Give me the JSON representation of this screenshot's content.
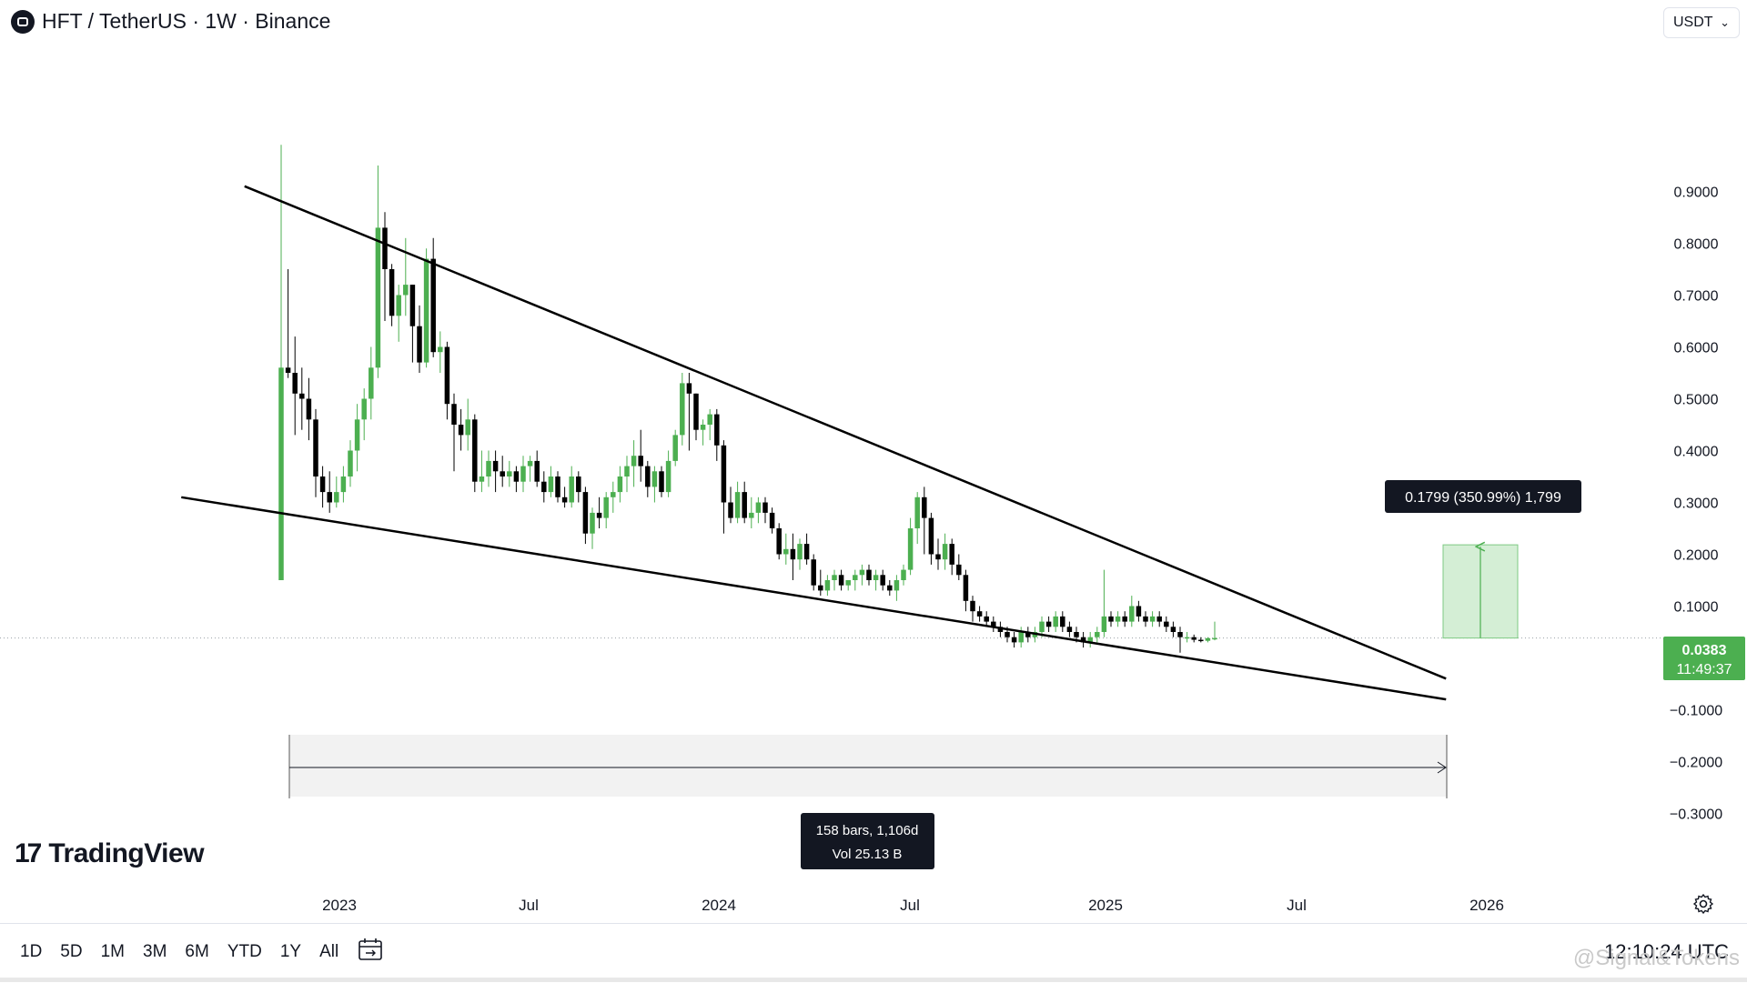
{
  "header": {
    "title": "HFT / TetherUS · 1W · Binance"
  },
  "currency_select": {
    "value": "USDT"
  },
  "brand": {
    "name": "TradingView"
  },
  "toolbar": {
    "ranges": [
      "1D",
      "5D",
      "1M",
      "3M",
      "6M",
      "YTD",
      "1Y",
      "All"
    ],
    "clock": "12:10:24 UTC"
  },
  "watermark": "@Signal&Tokens",
  "chart_data": {
    "type": "candlestick",
    "y_axis_labels": [
      "0.9000",
      "0.8000",
      "0.7000",
      "0.6000",
      "0.5000",
      "0.4000",
      "0.3000",
      "0.2000",
      "0.1000",
      "−0.1000",
      "−0.2000",
      "−0.3000"
    ],
    "ylim": [
      -0.36,
      1.0
    ],
    "x_axis_labels": [
      "2023",
      "Jul",
      "2024",
      "Jul",
      "2025",
      "Jul",
      "2026"
    ],
    "last_price": {
      "value": "0.0383",
      "countdown": "11:49:37"
    },
    "measure_price": {
      "label": "0.1799 (350.99%) 1,799"
    },
    "measure_range": {
      "bars_label": "158 bars, 1,106d",
      "vol_label": "Vol 25.13 B"
    },
    "colors": {
      "up": "#4caf50",
      "down": "#000000",
      "trendline": "#000000",
      "measure_fill": "#d4eed5"
    },
    "trendlines": [
      {
        "name": "upper-resistance",
        "from": [
          "2022-10",
          0.91
        ],
        "to": [
          "2025-12",
          -0.04
        ]
      },
      {
        "name": "lower-support",
        "from": [
          "2022-08",
          0.31
        ],
        "to": [
          "2025-12",
          -0.08
        ]
      }
    ],
    "candles": [
      [
        0.15,
        0.99,
        0.15,
        0.56
      ],
      [
        0.56,
        0.75,
        0.54,
        0.55
      ],
      [
        0.55,
        0.62,
        0.43,
        0.51
      ],
      [
        0.51,
        0.56,
        0.44,
        0.5
      ],
      [
        0.5,
        0.54,
        0.42,
        0.46
      ],
      [
        0.46,
        0.48,
        0.31,
        0.35
      ],
      [
        0.35,
        0.37,
        0.29,
        0.32
      ],
      [
        0.32,
        0.36,
        0.28,
        0.3
      ],
      [
        0.3,
        0.35,
        0.29,
        0.32
      ],
      [
        0.32,
        0.37,
        0.3,
        0.35
      ],
      [
        0.35,
        0.42,
        0.33,
        0.4
      ],
      [
        0.4,
        0.49,
        0.36,
        0.46
      ],
      [
        0.46,
        0.52,
        0.42,
        0.5
      ],
      [
        0.5,
        0.6,
        0.46,
        0.56
      ],
      [
        0.56,
        0.95,
        0.54,
        0.83
      ],
      [
        0.83,
        0.86,
        0.65,
        0.75
      ],
      [
        0.75,
        0.76,
        0.64,
        0.66
      ],
      [
        0.66,
        0.72,
        0.61,
        0.7
      ],
      [
        0.7,
        0.81,
        0.66,
        0.72
      ],
      [
        0.72,
        0.72,
        0.57,
        0.64
      ],
      [
        0.64,
        0.68,
        0.55,
        0.57
      ],
      [
        0.57,
        0.79,
        0.56,
        0.77
      ],
      [
        0.77,
        0.81,
        0.58,
        0.59
      ],
      [
        0.59,
        0.63,
        0.55,
        0.6
      ],
      [
        0.6,
        0.61,
        0.46,
        0.49
      ],
      [
        0.49,
        0.51,
        0.36,
        0.45
      ],
      [
        0.45,
        0.48,
        0.4,
        0.43
      ],
      [
        0.43,
        0.5,
        0.4,
        0.46
      ],
      [
        0.46,
        0.47,
        0.32,
        0.34
      ],
      [
        0.34,
        0.4,
        0.32,
        0.35
      ],
      [
        0.35,
        0.4,
        0.33,
        0.38
      ],
      [
        0.38,
        0.4,
        0.32,
        0.36
      ],
      [
        0.36,
        0.39,
        0.33,
        0.35
      ],
      [
        0.35,
        0.38,
        0.33,
        0.36
      ],
      [
        0.36,
        0.37,
        0.32,
        0.34
      ],
      [
        0.34,
        0.39,
        0.32,
        0.37
      ],
      [
        0.37,
        0.39,
        0.34,
        0.38
      ],
      [
        0.38,
        0.4,
        0.33,
        0.34
      ],
      [
        0.34,
        0.36,
        0.3,
        0.32
      ],
      [
        0.32,
        0.37,
        0.31,
        0.35
      ],
      [
        0.35,
        0.36,
        0.3,
        0.31
      ],
      [
        0.31,
        0.33,
        0.29,
        0.3
      ],
      [
        0.3,
        0.37,
        0.29,
        0.35
      ],
      [
        0.35,
        0.36,
        0.3,
        0.32
      ],
      [
        0.32,
        0.33,
        0.22,
        0.24
      ],
      [
        0.24,
        0.29,
        0.21,
        0.28
      ],
      [
        0.28,
        0.31,
        0.25,
        0.27
      ],
      [
        0.27,
        0.32,
        0.25,
        0.31
      ],
      [
        0.31,
        0.34,
        0.28,
        0.32
      ],
      [
        0.32,
        0.37,
        0.3,
        0.35
      ],
      [
        0.35,
        0.39,
        0.32,
        0.37
      ],
      [
        0.37,
        0.42,
        0.33,
        0.39
      ],
      [
        0.39,
        0.44,
        0.34,
        0.37
      ],
      [
        0.37,
        0.38,
        0.31,
        0.33
      ],
      [
        0.33,
        0.37,
        0.3,
        0.36
      ],
      [
        0.36,
        0.37,
        0.31,
        0.32
      ],
      [
        0.32,
        0.4,
        0.31,
        0.38
      ],
      [
        0.38,
        0.44,
        0.37,
        0.43
      ],
      [
        0.43,
        0.55,
        0.41,
        0.53
      ],
      [
        0.53,
        0.55,
        0.4,
        0.51
      ],
      [
        0.51,
        0.51,
        0.42,
        0.44
      ],
      [
        0.44,
        0.46,
        0.41,
        0.45
      ],
      [
        0.45,
        0.48,
        0.42,
        0.47
      ],
      [
        0.47,
        0.48,
        0.38,
        0.41
      ],
      [
        0.41,
        0.42,
        0.24,
        0.3
      ],
      [
        0.3,
        0.33,
        0.26,
        0.27
      ],
      [
        0.27,
        0.34,
        0.26,
        0.32
      ],
      [
        0.32,
        0.34,
        0.26,
        0.27
      ],
      [
        0.27,
        0.31,
        0.25,
        0.28
      ],
      [
        0.28,
        0.31,
        0.26,
        0.3
      ],
      [
        0.3,
        0.31,
        0.26,
        0.28
      ],
      [
        0.28,
        0.29,
        0.24,
        0.25
      ],
      [
        0.25,
        0.26,
        0.19,
        0.2
      ],
      [
        0.2,
        0.24,
        0.18,
        0.21
      ],
      [
        0.21,
        0.24,
        0.15,
        0.19
      ],
      [
        0.19,
        0.23,
        0.17,
        0.22
      ],
      [
        0.22,
        0.24,
        0.18,
        0.19
      ],
      [
        0.19,
        0.2,
        0.13,
        0.14
      ],
      [
        0.14,
        0.17,
        0.12,
        0.13
      ],
      [
        0.13,
        0.16,
        0.12,
        0.15
      ],
      [
        0.15,
        0.17,
        0.13,
        0.16
      ],
      [
        0.16,
        0.17,
        0.13,
        0.14
      ],
      [
        0.14,
        0.15,
        0.13,
        0.15
      ],
      [
        0.15,
        0.17,
        0.13,
        0.16
      ],
      [
        0.16,
        0.18,
        0.14,
        0.17
      ],
      [
        0.17,
        0.18,
        0.14,
        0.15
      ],
      [
        0.15,
        0.17,
        0.13,
        0.16
      ],
      [
        0.16,
        0.17,
        0.13,
        0.14
      ],
      [
        0.14,
        0.15,
        0.12,
        0.13
      ],
      [
        0.13,
        0.16,
        0.11,
        0.15
      ],
      [
        0.15,
        0.18,
        0.14,
        0.17
      ],
      [
        0.17,
        0.27,
        0.16,
        0.25
      ],
      [
        0.25,
        0.32,
        0.22,
        0.31
      ],
      [
        0.31,
        0.33,
        0.2,
        0.27
      ],
      [
        0.27,
        0.28,
        0.18,
        0.2
      ],
      [
        0.2,
        0.23,
        0.17,
        0.19
      ],
      [
        0.19,
        0.24,
        0.17,
        0.22
      ],
      [
        0.22,
        0.23,
        0.16,
        0.18
      ],
      [
        0.18,
        0.2,
        0.15,
        0.16
      ],
      [
        0.16,
        0.17,
        0.09,
        0.11
      ],
      [
        0.11,
        0.12,
        0.07,
        0.09
      ],
      [
        0.09,
        0.1,
        0.07,
        0.08
      ],
      [
        0.08,
        0.09,
        0.06,
        0.07
      ],
      [
        0.07,
        0.08,
        0.05,
        0.06
      ],
      [
        0.06,
        0.07,
        0.04,
        0.05
      ],
      [
        0.05,
        0.06,
        0.03,
        0.04
      ],
      [
        0.04,
        0.05,
        0.02,
        0.03
      ],
      [
        0.03,
        0.06,
        0.02,
        0.05
      ],
      [
        0.05,
        0.06,
        0.03,
        0.04
      ],
      [
        0.04,
        0.06,
        0.03,
        0.05
      ],
      [
        0.05,
        0.08,
        0.04,
        0.07
      ],
      [
        0.07,
        0.08,
        0.05,
        0.06
      ],
      [
        0.06,
        0.09,
        0.05,
        0.08
      ],
      [
        0.08,
        0.09,
        0.05,
        0.06
      ],
      [
        0.06,
        0.07,
        0.04,
        0.05
      ],
      [
        0.05,
        0.06,
        0.03,
        0.04
      ],
      [
        0.04,
        0.05,
        0.02,
        0.03
      ],
      [
        0.03,
        0.05,
        0.02,
        0.04
      ],
      [
        0.04,
        0.06,
        0.03,
        0.05
      ],
      [
        0.05,
        0.17,
        0.04,
        0.08
      ],
      [
        0.08,
        0.09,
        0.06,
        0.07
      ],
      [
        0.07,
        0.09,
        0.06,
        0.08
      ],
      [
        0.08,
        0.09,
        0.06,
        0.07
      ],
      [
        0.07,
        0.12,
        0.06,
        0.1
      ],
      [
        0.1,
        0.11,
        0.07,
        0.08
      ],
      [
        0.08,
        0.09,
        0.06,
        0.07
      ],
      [
        0.07,
        0.09,
        0.06,
        0.08
      ],
      [
        0.08,
        0.09,
        0.06,
        0.07
      ],
      [
        0.07,
        0.08,
        0.05,
        0.06
      ],
      [
        0.06,
        0.07,
        0.04,
        0.05
      ],
      [
        0.05,
        0.06,
        0.01,
        0.04
      ],
      [
        0.04,
        0.05,
        0.03,
        0.04
      ],
      [
        0.04,
        0.045,
        0.03,
        0.035
      ],
      [
        0.035,
        0.04,
        0.03,
        0.033
      ],
      [
        0.033,
        0.04,
        0.03,
        0.038
      ],
      [
        0.036,
        0.07,
        0.034,
        0.0383
      ]
    ]
  }
}
